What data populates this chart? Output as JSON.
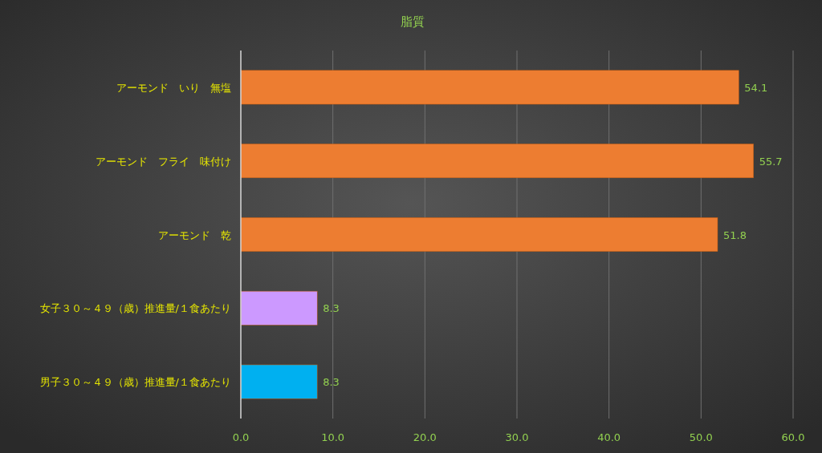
{
  "chart_data": {
    "type": "bar",
    "orientation": "horizontal",
    "title": "脂質",
    "categories": [
      "アーモンド　いり　無塩",
      "アーモンド　フライ　味付け",
      "アーモンド　乾",
      "女子３０～４９（歳）推進量/１食あたり",
      "男子３０～４９（歳）推進量/１食あたり"
    ],
    "values": [
      54.1,
      55.7,
      51.8,
      8.3,
      8.3
    ],
    "colors": [
      "#ed7d31",
      "#ed7d31",
      "#ed7d31",
      "#cc99ff",
      "#00b0f0"
    ],
    "xlim": [
      0,
      60
    ],
    "xticks": [
      {
        "value": 0,
        "label": "0.0"
      },
      {
        "value": 10,
        "label": "10.0"
      },
      {
        "value": 20,
        "label": "20.0"
      },
      {
        "value": 30,
        "label": "30.0"
      },
      {
        "value": 40,
        "label": "40.0"
      },
      {
        "value": 50,
        "label": "50.0"
      },
      {
        "value": 60,
        "label": "60.0"
      }
    ],
    "grid": "x",
    "data_labels": true
  }
}
